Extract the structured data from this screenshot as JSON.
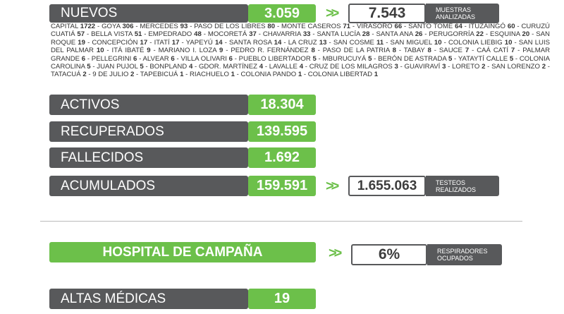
{
  "nuevos": {
    "label": "NUEVOS",
    "value": "3.059"
  },
  "muestras": {
    "value": "7.543",
    "caption_line1": "MUESTRAS",
    "caption_line2": "ANALIZADAS"
  },
  "localities": [
    {
      "name": "CAPITAL",
      "count": "1722"
    },
    {
      "name": "GOYA",
      "count": "306"
    },
    {
      "name": "MERCEDES",
      "count": "93"
    },
    {
      "name": "PASO DE LOS LIBRES",
      "count": "80"
    },
    {
      "name": "MONTE CASEROS",
      "count": "71"
    },
    {
      "name": "VIRASORO",
      "count": "66"
    },
    {
      "name": "SANTO TOMÉ",
      "count": "64"
    },
    {
      "name": "ITUZAINGÓ",
      "count": "60"
    },
    {
      "name": "CURUZÚ CUATIÁ",
      "count": "57"
    },
    {
      "name": "BELLA VISTA",
      "count": "51"
    },
    {
      "name": "EMPEDRADO",
      "count": "48"
    },
    {
      "name": "MOCORETÁ",
      "count": "37"
    },
    {
      "name": "CHAVARRIA",
      "count": "33"
    },
    {
      "name": "SANTA LUCÍA",
      "count": "28"
    },
    {
      "name": "SANTA ANA",
      "count": "26"
    },
    {
      "name": "PERUGORRÍA",
      "count": "22"
    },
    {
      "name": "ESQUINA",
      "count": "20"
    },
    {
      "name": "SAN ROQUE",
      "count": "19"
    },
    {
      "name": "CONCEPCIÓN",
      "count": "17"
    },
    {
      "name": "ITATÍ",
      "count": "17"
    },
    {
      "name": "YAPEYÚ",
      "count": "14"
    },
    {
      "name": "SANTA ROSA",
      "count": "14"
    },
    {
      "name": "LA CRUZ",
      "count": "13"
    },
    {
      "name": "SAN COSME",
      "count": "11"
    },
    {
      "name": "SAN MIGUEL",
      "count": "10"
    },
    {
      "name": "COLONIA LIEBIG",
      "count": "10"
    },
    {
      "name": "SAN LUIS DEL PALMAR",
      "count": "10"
    },
    {
      "name": "ITÁ IBATÉ",
      "count": "9"
    },
    {
      "name": "MARIANO I. LOZA",
      "count": "9"
    },
    {
      "name": "PEDRO R. FERNÁNDEZ",
      "count": "8"
    },
    {
      "name": "PASO DE LA PATRIA",
      "count": "8"
    },
    {
      "name": "TABAY",
      "count": "8"
    },
    {
      "name": "SAUCE",
      "count": "7"
    },
    {
      "name": "CAÁ CATÍ",
      "count": "7"
    },
    {
      "name": "PALMAR GRANDE",
      "count": "6"
    },
    {
      "name": "PELLEGRINI",
      "count": "6"
    },
    {
      "name": "ALVEAR",
      "count": "6"
    },
    {
      "name": "VILLA OLIVARI",
      "count": "6"
    },
    {
      "name": "PUEBLO LIBERTADOR",
      "count": "5"
    },
    {
      "name": "MBURUCUYÁ",
      "count": "5"
    },
    {
      "name": "BERÓN DE ASTRADA",
      "count": "5"
    },
    {
      "name": "YATAYTÍ CALLE",
      "count": "5"
    },
    {
      "name": "COLONIA CAROLINA",
      "count": "5"
    },
    {
      "name": "JUAN PUJOL",
      "count": "5"
    },
    {
      "name": "BONPLAND",
      "count": "4"
    },
    {
      "name": "GDOR. MARTÍNEZ",
      "count": "4"
    },
    {
      "name": "LAVALLE",
      "count": "4"
    },
    {
      "name": "CRUZ DE LOS MILAGROS",
      "count": "3"
    },
    {
      "name": "GUAVIRAVÍ",
      "count": "3"
    },
    {
      "name": "LORETO",
      "count": "2"
    },
    {
      "name": "SAN LORENZO",
      "count": "2"
    },
    {
      "name": "TATACUÁ",
      "count": "2"
    },
    {
      "name": "9 DE JULIO",
      "count": "2"
    },
    {
      "name": "TAPEBICUÁ",
      "count": "1"
    },
    {
      "name": "RIACHUELO",
      "count": "1"
    },
    {
      "name": "COLONIA PANDO",
      "count": "1"
    },
    {
      "name": "COLONIA LIBERTAD",
      "count": "1"
    }
  ],
  "activos": {
    "label": "ACTIVOS",
    "value": "18.304"
  },
  "recuperados": {
    "label": "RECUPERADOS",
    "value": "139.595"
  },
  "fallecidos": {
    "label": "FALLECIDOS",
    "value": "1.692"
  },
  "acumulados": {
    "label": "ACUMULADOS",
    "value": "159.591"
  },
  "testeos": {
    "value": "1.655.063",
    "caption_line1": "TESTEOS",
    "caption_line2": "REALIZADOS"
  },
  "arrows": ">>",
  "hospital": {
    "title": "HOSPITAL DE CAMPAÑA"
  },
  "respiradores": {
    "value": "6%",
    "caption_line1": "RESPIRADORES",
    "caption_line2": "OCUPADOS"
  },
  "altas": {
    "label": "ALTAS MÉDICAS",
    "value": "19"
  },
  "colors": {
    "green": "#6cc04a",
    "dark_gray": "#58595b"
  }
}
